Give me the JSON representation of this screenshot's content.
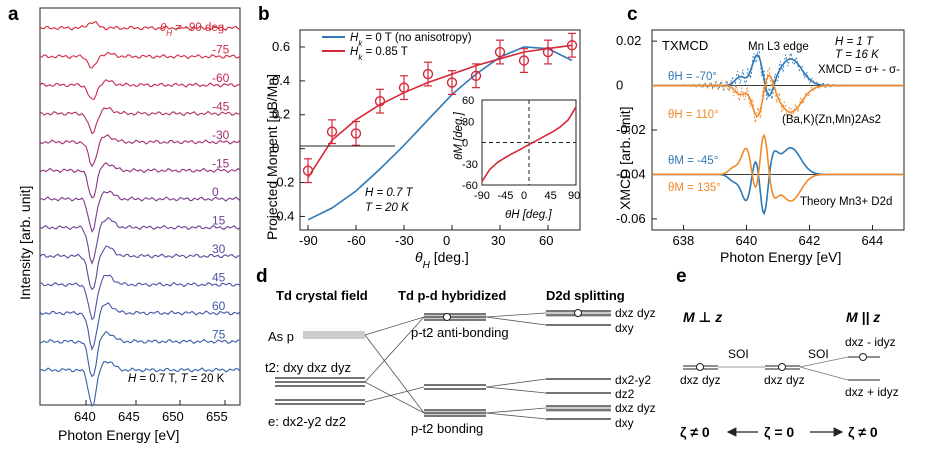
{
  "figure": {
    "panels": {
      "a": {
        "letter": "a",
        "ylabel": "Intensity [arb. unit]",
        "xlabel": "Photon Energy [eV]",
        "xticks": [
          "640",
          "645",
          "650",
          "655"
        ],
        "angle_labels": [
          "-75",
          "-60",
          "-45",
          "-30",
          "-15",
          "0",
          "15",
          "30",
          "45",
          "60",
          "75"
        ],
        "top_label_prefix": "θ",
        "top_label_sub": "H",
        "top_label_rest": " = -90 deg.",
        "cond_H": "H",
        "cond_mid": " = 0.7 T, ",
        "cond_T": "T",
        "cond_end": " = 20 K",
        "colors": [
          "#d62839",
          "#d52b47",
          "#c7285c",
          "#b62d69",
          "#a13075",
          "#8c3580",
          "#7a3b8b",
          "#6d4393",
          "#5c4a9b",
          "#4e53a3",
          "#4258a8",
          "#3a5daa",
          "#3661ac"
        ]
      },
      "b": {
        "letter": "b",
        "ylabel": "Projected Moment [μB/Mn]",
        "xlabel_prefix": "θ",
        "xlabel_sub": "H",
        "xlabel_rest": " [deg.]",
        "xticks": [
          "-90",
          "-60",
          "-30",
          "0",
          "30",
          "60"
        ],
        "yticks": [
          "-0.4",
          "-0.2",
          "0",
          "0.2",
          "0.4",
          "0.6"
        ],
        "legend_1_pre": "H",
        "legend_1_sub": "k",
        "legend_1_rest": " = 0 T (no anisotropy)",
        "legend_2_pre": "H",
        "legend_2_sub": "k",
        "legend_2_rest": " = 0.85 T",
        "cond_1": "H = 0.7 T",
        "cond_2": "T = 20 K",
        "inset_ylabel": "θM [deg.]",
        "inset_xlabel": "θH [deg.]",
        "inset_xticks": [
          "-90",
          "-45",
          "0",
          "45",
          "90"
        ],
        "inset_yticks": [
          "60",
          "30",
          "0",
          "-30",
          "-60"
        ]
      },
      "c": {
        "letter": "c",
        "title": "TXMCD",
        "edge_label": "Mn L3 edge",
        "cond_H": "H = 1 T",
        "cond_T": "T = 16 K",
        "xmcd_def": "XMCD = σ+ - σ-",
        "ylabel": "XMCD [arb. unit]",
        "xlabel": "Photon Energy [eV]",
        "xticks": [
          "638",
          "640",
          "642",
          "644"
        ],
        "yticks": [
          "0.02",
          "0",
          "-0.02",
          "-0.04",
          "-0.06"
        ],
        "exp_label_1": "θH = -70°",
        "exp_label_2": "θH = 110°",
        "compound": "(Ba,K)(Zn,Mn)2As2",
        "theory_label_1": "θM = -45°",
        "theory_label_2": "θM = 135°",
        "theory_title": "Theory Mn3+ D2d"
      },
      "d": {
        "letter": "d",
        "col1": "Td crystal field",
        "col2": "Td p-d hybridized",
        "col3": "D2d splitting",
        "as_p": "As p",
        "t2_label": "t2: dxy dxz dyz",
        "e_label": "e: dx2-y2 dz2",
        "anti_bonding": "p-t2 anti-bonding",
        "bonding": "p-t2 bonding",
        "r1": "dxz dyz",
        "r2": "dxy",
        "r3": "dx2-y2",
        "r4": "dz2",
        "r5": "dxz dyz",
        "r6": "dxy"
      },
      "e": {
        "letter": "e",
        "m_perp": "M ⊥ z",
        "m_par": "M || z",
        "soi_1": "SOI",
        "soi_2": "SOI",
        "lvl_left": "dxz dyz",
        "lvl_mid": "dxz dyz",
        "lvl_r_top": "dxz - idyz",
        "lvl_r_bot": "dxz + idyz",
        "zeta_left": "ζ ≠ 0",
        "zeta_mid": "ζ = 0",
        "zeta_right": "ζ ≠ 0"
      }
    }
  },
  "chart_data": [
    {
      "type": "line",
      "panel": "b",
      "xlabel": "θH [deg.]",
      "ylabel": "Projected Moment [μB/Mn]",
      "xlim": [
        -95,
        80
      ],
      "ylim": [
        -0.48,
        0.7
      ],
      "series": [
        {
          "name": "Hk = 0 T (no anisotropy)",
          "color": "#2f78b4",
          "x": [
            -90,
            -75,
            -60,
            -45,
            -30,
            -15,
            0,
            15,
            30,
            45,
            60,
            75
          ],
          "y": [
            -0.42,
            -0.35,
            -0.25,
            -0.12,
            0.02,
            0.17,
            0.32,
            0.44,
            0.54,
            0.6,
            0.59,
            0.52
          ]
        },
        {
          "name": "Hk = 0.85 T",
          "color": "#d62839",
          "x": [
            -90,
            -75,
            -60,
            -45,
            -30,
            -15,
            0,
            15,
            30,
            45,
            60,
            75
          ],
          "y": [
            -0.17,
            0.05,
            0.17,
            0.26,
            0.33,
            0.39,
            0.44,
            0.49,
            0.53,
            0.57,
            0.59,
            0.61
          ]
        },
        {
          "name": "data",
          "color": "#d62839",
          "x": [
            -90,
            -75,
            -60,
            -45,
            -30,
            -15,
            0,
            15,
            30,
            45,
            60,
            75
          ],
          "y": [
            -0.13,
            0.1,
            0.09,
            0.28,
            0.36,
            0.44,
            0.39,
            0.43,
            0.57,
            0.52,
            0.57,
            0.61
          ],
          "err": [
            0.07,
            0.07,
            0.07,
            0.07,
            0.07,
            0.07,
            0.07,
            0.07,
            0.07,
            0.07,
            0.07,
            0.07
          ]
        }
      ]
    },
    {
      "type": "line",
      "panel": "b-inset",
      "xlabel": "θH [deg.]",
      "ylabel": "θM [deg.]",
      "xlim": [
        -90,
        90
      ],
      "ylim": [
        -60,
        60
      ],
      "series": [
        {
          "name": "θM",
          "color": "#d62839",
          "x": [
            -90,
            -75,
            -60,
            -45,
            -30,
            -15,
            0,
            15,
            30,
            45,
            60,
            75,
            90
          ],
          "y": [
            -55,
            -38,
            -28,
            -21,
            -15,
            -9,
            -3,
            3,
            9,
            15,
            22,
            32,
            50
          ]
        }
      ]
    },
    {
      "type": "line",
      "panel": "c",
      "xlabel": "Photon Energy [eV]",
      "ylabel": "XMCD [arb. unit]",
      "xlim": [
        637,
        645
      ],
      "ylim": [
        -0.065,
        0.025
      ],
      "series": [
        {
          "name": "θH = -70°",
          "color": "#2f78b4",
          "x": [
            637,
            638,
            639,
            639.5,
            640,
            640.3,
            640.6,
            641,
            641.5,
            642,
            643,
            644,
            645
          ],
          "y": [
            0,
            0,
            0.001,
            0.003,
            0.008,
            0.014,
            0.006,
            0.004,
            0.011,
            0.005,
            0.001,
            0,
            0
          ]
        },
        {
          "name": "θH = 110°",
          "color": "#f0892a",
          "x": [
            637,
            638,
            639,
            639.5,
            640,
            640.3,
            640.6,
            641,
            641.5,
            642,
            643,
            644,
            645
          ],
          "y": [
            0,
            0,
            -0.001,
            -0.003,
            -0.008,
            -0.014,
            -0.006,
            -0.004,
            -0.011,
            -0.005,
            -0.001,
            0,
            0
          ]
        },
        {
          "name": "θM = -45°",
          "color": "#2f78b4",
          "x": [
            637,
            638,
            639,
            639.5,
            640,
            640.3,
            640.6,
            641,
            641.5,
            642,
            643,
            644,
            645
          ],
          "y": [
            -0.04,
            -0.04,
            -0.041,
            -0.045,
            -0.052,
            -0.03,
            -0.06,
            -0.036,
            -0.028,
            -0.04,
            -0.04,
            -0.04,
            -0.04
          ]
        },
        {
          "name": "θM = 135°",
          "color": "#f0892a",
          "x": [
            637,
            638,
            639,
            639.5,
            640,
            640.3,
            640.6,
            641,
            641.5,
            642,
            643,
            644,
            645
          ],
          "y": [
            -0.04,
            -0.04,
            -0.039,
            -0.035,
            -0.028,
            -0.05,
            -0.02,
            -0.044,
            -0.052,
            -0.04,
            -0.04,
            -0.04,
            -0.04
          ]
        }
      ]
    }
  ]
}
